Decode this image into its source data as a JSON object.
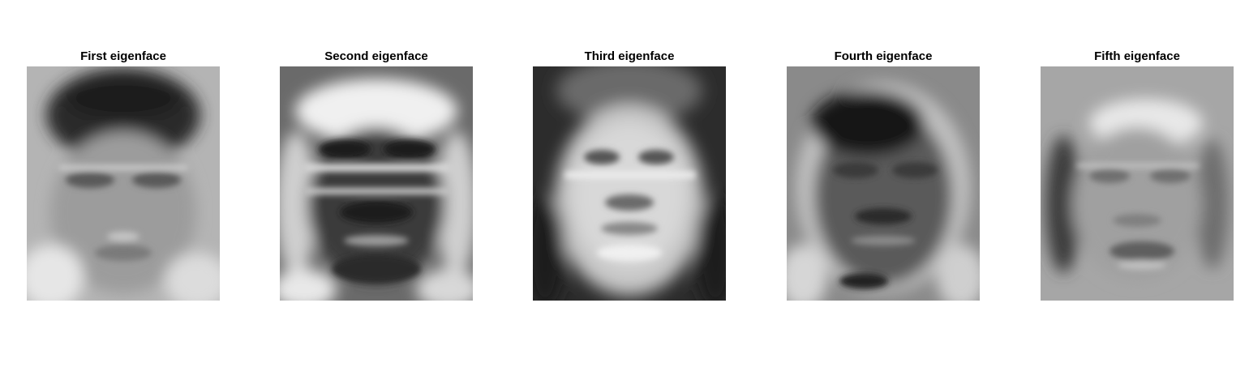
{
  "figure": {
    "panels": [
      {
        "title": "First eigenface",
        "tone": "light"
      },
      {
        "title": "Second eigenface",
        "tone": "dark-contrast"
      },
      {
        "title": "Third eigenface",
        "tone": "bright-center"
      },
      {
        "title": "Fourth eigenface",
        "tone": "dark-hair"
      },
      {
        "title": "Fifth eigenface",
        "tone": "mid-gray"
      }
    ]
  }
}
